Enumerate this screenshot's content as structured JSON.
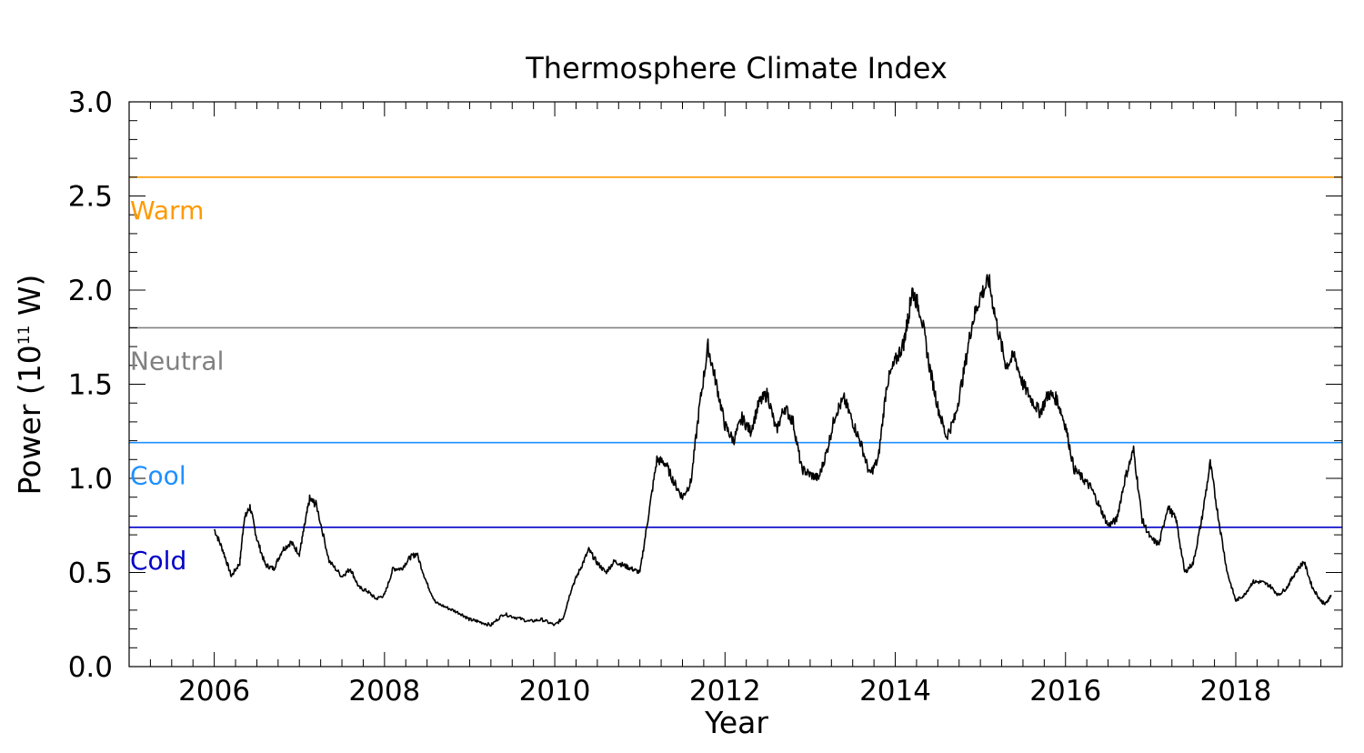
{
  "chart_data": {
    "type": "line",
    "title": "Thermosphere Climate Index",
    "xlabel": "Year",
    "ylabel": "Power (10",
    "ylabel_sup": "11",
    "ylabel_unit": " W)",
    "xlim": [
      2005.0,
      2019.25
    ],
    "ylim": [
      0.0,
      3.0
    ],
    "x_ticks": [
      "2006",
      "2008",
      "2010",
      "2012",
      "2014",
      "2016",
      "2018"
    ],
    "y_ticks": [
      "0.0",
      "0.5",
      "1.0",
      "1.5",
      "2.0",
      "2.5",
      "3.0"
    ],
    "grid": false,
    "thresholds": [
      {
        "name": "Warm",
        "value": 2.6,
        "color": "#ff9900"
      },
      {
        "name": "Neutral",
        "value": 1.8,
        "color": "#808080"
      },
      {
        "name": "Cool",
        "value": 1.19,
        "color": "#1e90ff"
      },
      {
        "name": "Cold",
        "value": 0.74,
        "color": "#0000c8"
      }
    ],
    "series": [
      {
        "color": "#000000",
        "x": [
          2006.0,
          2006.1,
          2006.2,
          2006.3,
          2006.35,
          2006.42,
          2006.5,
          2006.6,
          2006.7,
          2006.8,
          2006.9,
          2007.0,
          2007.05,
          2007.12,
          2007.2,
          2007.35,
          2007.5,
          2007.6,
          2007.7,
          2007.8,
          2007.9,
          2008.0,
          2008.1,
          2008.2,
          2008.3,
          2008.38,
          2008.5,
          2008.6,
          2008.75,
          2008.9,
          2009.0,
          2009.1,
          2009.25,
          2009.4,
          2009.55,
          2009.7,
          2009.85,
          2010.0,
          2010.1,
          2010.2,
          2010.3,
          2010.4,
          2010.5,
          2010.6,
          2010.7,
          2010.8,
          2010.9,
          2011.0,
          2011.1,
          2011.2,
          2011.3,
          2011.4,
          2011.5,
          2011.6,
          2011.7,
          2011.8,
          2011.9,
          2012.0,
          2012.1,
          2012.2,
          2012.3,
          2012.4,
          2012.5,
          2012.6,
          2012.7,
          2012.8,
          2012.9,
          2013.0,
          2013.1,
          2013.2,
          2013.3,
          2013.4,
          2013.5,
          2013.6,
          2013.7,
          2013.8,
          2013.9,
          2014.0,
          2014.1,
          2014.15,
          2014.2,
          2014.3,
          2014.4,
          2014.5,
          2014.6,
          2014.7,
          2014.8,
          2014.9,
          2015.0,
          2015.1,
          2015.2,
          2015.3,
          2015.4,
          2015.5,
          2015.6,
          2015.7,
          2015.8,
          2015.9,
          2016.0,
          2016.1,
          2016.2,
          2016.3,
          2016.4,
          2016.5,
          2016.6,
          2016.7,
          2016.8,
          2016.9,
          2017.0,
          2017.1,
          2017.2,
          2017.3,
          2017.4,
          2017.5,
          2017.6,
          2017.7,
          2017.8,
          2017.9,
          2018.0,
          2018.1,
          2018.2,
          2018.3,
          2018.4,
          2018.5,
          2018.6,
          2018.7,
          2018.8,
          2018.9,
          2019.0,
          2019.05,
          2019.12
        ],
        "y": [
          0.73,
          0.62,
          0.48,
          0.55,
          0.78,
          0.85,
          0.68,
          0.54,
          0.52,
          0.62,
          0.66,
          0.6,
          0.72,
          0.89,
          0.86,
          0.56,
          0.48,
          0.52,
          0.42,
          0.4,
          0.36,
          0.38,
          0.52,
          0.52,
          0.58,
          0.6,
          0.44,
          0.34,
          0.31,
          0.28,
          0.25,
          0.24,
          0.22,
          0.28,
          0.26,
          0.24,
          0.25,
          0.22,
          0.26,
          0.42,
          0.52,
          0.62,
          0.55,
          0.5,
          0.56,
          0.54,
          0.52,
          0.5,
          0.8,
          1.1,
          1.08,
          0.98,
          0.9,
          0.98,
          1.38,
          1.7,
          1.5,
          1.28,
          1.2,
          1.32,
          1.25,
          1.4,
          1.45,
          1.25,
          1.38,
          1.3,
          1.05,
          1.02,
          1.0,
          1.15,
          1.35,
          1.42,
          1.3,
          1.18,
          1.02,
          1.1,
          1.5,
          1.62,
          1.72,
          1.85,
          2.0,
          1.88,
          1.6,
          1.38,
          1.22,
          1.32,
          1.55,
          1.82,
          1.97,
          2.05,
          1.8,
          1.6,
          1.65,
          1.5,
          1.42,
          1.35,
          1.45,
          1.42,
          1.28,
          1.05,
          1.0,
          0.95,
          0.85,
          0.75,
          0.78,
          1.0,
          1.15,
          0.78,
          0.68,
          0.65,
          0.85,
          0.78,
          0.5,
          0.55,
          0.78,
          1.08,
          0.78,
          0.5,
          0.35,
          0.38,
          0.45,
          0.45,
          0.43,
          0.38,
          0.42,
          0.5,
          0.56,
          0.42,
          0.35,
          0.33,
          0.38
        ]
      }
    ]
  }
}
